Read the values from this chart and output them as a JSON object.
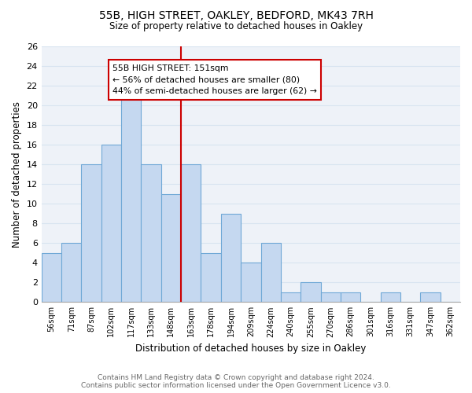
{
  "title": "55B, HIGH STREET, OAKLEY, BEDFORD, MK43 7RH",
  "subtitle": "Size of property relative to detached houses in Oakley",
  "xlabel": "Distribution of detached houses by size in Oakley",
  "ylabel": "Number of detached properties",
  "bin_labels": [
    "56sqm",
    "71sqm",
    "87sqm",
    "102sqm",
    "117sqm",
    "133sqm",
    "148sqm",
    "163sqm",
    "178sqm",
    "194sqm",
    "209sqm",
    "224sqm",
    "240sqm",
    "255sqm",
    "270sqm",
    "286sqm",
    "301sqm",
    "316sqm",
    "331sqm",
    "347sqm",
    "362sqm"
  ],
  "bar_heights": [
    5,
    6,
    14,
    16,
    21,
    14,
    11,
    14,
    5,
    9,
    4,
    6,
    1,
    2,
    1,
    1,
    0,
    1,
    0,
    1,
    0
  ],
  "bar_color": "#c5d8f0",
  "bar_edge_color": "#6fa8d6",
  "property_line_x": 6.5,
  "property_line_label": "55B HIGH STREET: 151sqm",
  "annotation_line1": "← 56% of detached houses are smaller (80)",
  "annotation_line2": "44% of semi-detached houses are larger (62) →",
  "annotation_box_facecolor": "#ffffff",
  "annotation_box_edgecolor": "#cc0000",
  "line_color": "#cc0000",
  "ylim": [
    0,
    26
  ],
  "yticks": [
    0,
    2,
    4,
    6,
    8,
    10,
    12,
    14,
    16,
    18,
    20,
    22,
    24,
    26
  ],
  "footer_line1": "Contains HM Land Registry data © Crown copyright and database right 2024.",
  "footer_line2": "Contains public sector information licensed under the Open Government Licence v3.0.",
  "grid_color": "#d8e4f0",
  "background_color": "#eef2f8"
}
